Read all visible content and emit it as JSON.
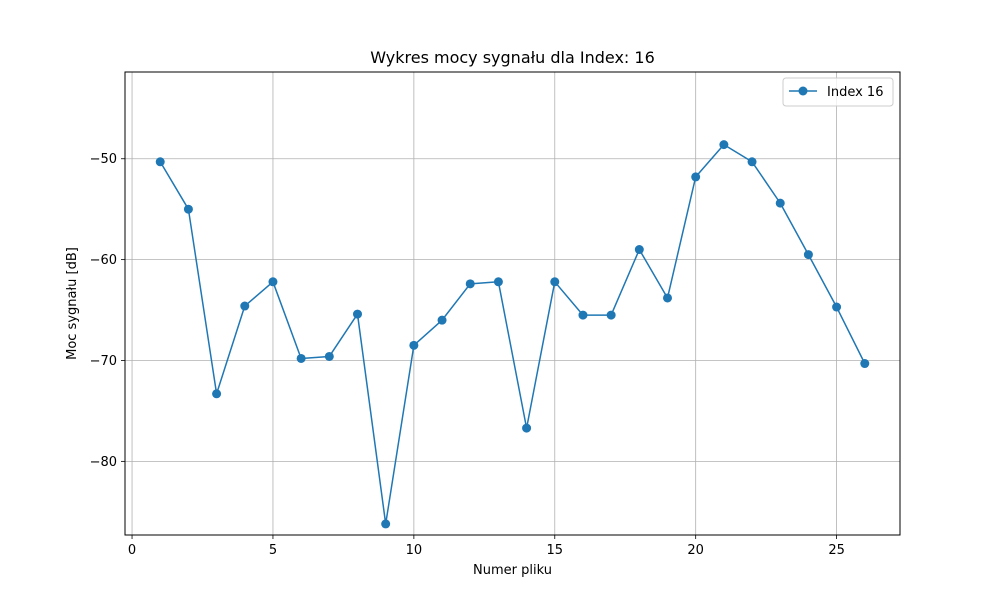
{
  "chart_data": {
    "type": "line",
    "title": "Wykres mocy sygnału dla Index: 16",
    "xlabel": "Numer pliku",
    "ylabel": "Moc sygnału [dB]",
    "xlim": [
      -0.25,
      27.25
    ],
    "ylim": [
      -87.3,
      -41.4
    ],
    "xticks": [
      0,
      5,
      10,
      15,
      20,
      25
    ],
    "yticks": [
      -80,
      -70,
      -60,
      -50
    ],
    "xtick_labels": [
      "0",
      "5",
      "10",
      "15",
      "20",
      "25"
    ],
    "ytick_labels": [
      "−80",
      "−70",
      "−60",
      "−50"
    ],
    "grid": true,
    "legend_position": "top-right",
    "series": [
      {
        "name": "Index 16",
        "color": "#1f77b4",
        "marker": "circle",
        "x": [
          1,
          2,
          3,
          4,
          5,
          6,
          7,
          8,
          9,
          10,
          11,
          12,
          13,
          14,
          15,
          16,
          17,
          18,
          19,
          20,
          21,
          22,
          23,
          24,
          25,
          26
        ],
        "y": [
          -50.3,
          -55.0,
          -73.3,
          -64.6,
          -62.2,
          -69.8,
          -69.6,
          -65.4,
          -86.2,
          -68.5,
          -66.0,
          -62.4,
          -62.2,
          -76.7,
          -62.2,
          -65.5,
          -65.5,
          -59.0,
          -63.8,
          -51.8,
          -48.6,
          -50.3,
          -54.4,
          -59.5,
          -64.7,
          -70.3
        ]
      }
    ]
  }
}
